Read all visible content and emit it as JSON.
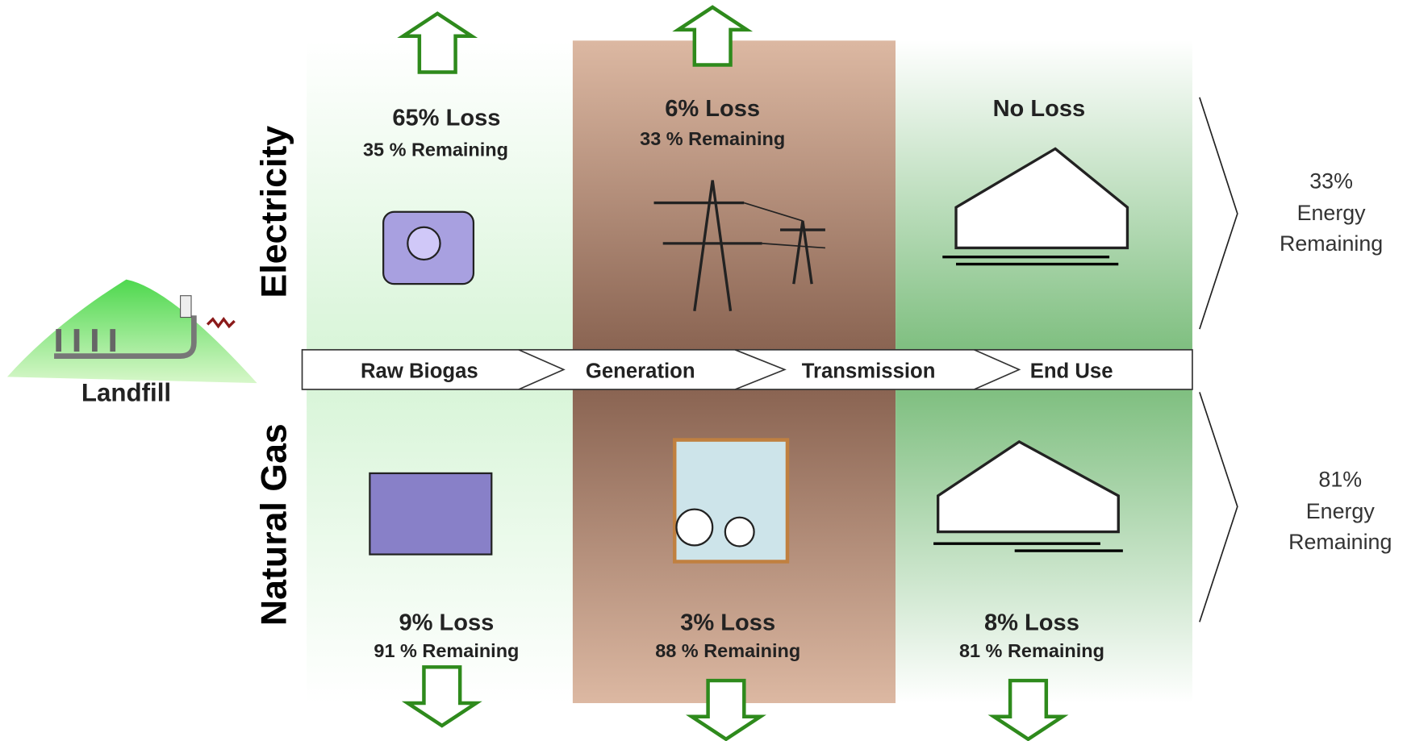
{
  "landfill": "Landfill",
  "rows": [
    "Electricity",
    "Natural Gas"
  ],
  "stages": [
    "Raw Biogas",
    "Generation",
    "Transmission",
    "End Use"
  ],
  "electricity": [
    {
      "loss": "65% Loss",
      "remaining": "35 % Remaining"
    },
    {
      "loss": "6% Loss",
      "remaining": "33 % Remaining"
    },
    {
      "loss": "No Loss"
    }
  ],
  "natural_gas": [
    {
      "loss": "9% Loss",
      "remaining": "91 % Remaining"
    },
    {
      "loss": "3% Loss",
      "remaining": "88 % Remaining"
    },
    {
      "loss": "8% Loss",
      "remaining": "81 % Remaining"
    }
  ],
  "results": [
    [
      "33%",
      "Energy",
      "Remaining"
    ],
    [
      "81%",
      "Energy",
      "Remaining"
    ]
  ]
}
